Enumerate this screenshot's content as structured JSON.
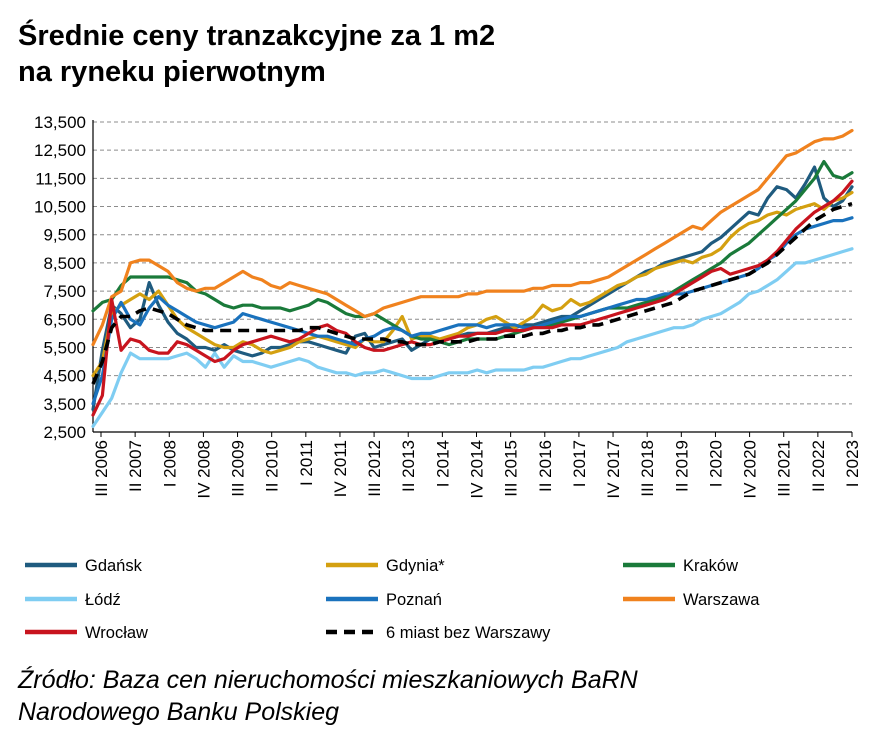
{
  "title": {
    "line1": "Średnie ceny tranzakcyjne za 1 m2",
    "line2": "na ryneku pierwotnym"
  },
  "source": {
    "line1": "Źródło: Baza cen nieruchomości mieszkaniowych BaRN",
    "line2": "Narodowego Banku Polskieg"
  },
  "chart_data": {
    "type": "line",
    "x_start": "III 2006",
    "x_ticks": [
      "III 2006",
      "II 2007",
      "I 2008",
      "IV 2008",
      "III 2009",
      "II 2010",
      "I 2011",
      "IV 2011",
      "III 2012",
      "II 2013",
      "I 2014",
      "IV 2014",
      "III 2015",
      "II 2016",
      "I 2017",
      "IV 2017",
      "III 2018",
      "II 2019",
      "I 2020",
      "IV 2020",
      "III 2021",
      "II 2022",
      "I 2023"
    ],
    "y_ticks": [
      "13,500",
      "12,500",
      "11,500",
      "10,500",
      "9,500",
      "8,500",
      "7,500",
      "6,500",
      "5,500",
      "4,500",
      "3,500",
      "2,500"
    ],
    "ylim": [
      2500,
      13500
    ],
    "grid": true,
    "legend_position": "bottom",
    "series": [
      {
        "name": "Gdańsk",
        "color": "#1f5b7f",
        "dashed": false,
        "values": [
          3300,
          5400,
          7000,
          6700,
          6200,
          6500,
          7800,
          7000,
          6400,
          6000,
          5800,
          5500,
          5500,
          5400,
          5600,
          5400,
          5300,
          5200,
          5300,
          5500,
          5500,
          5600,
          5700,
          5700,
          5600,
          5500,
          5400,
          5300,
          5900,
          6000,
          5500,
          5600,
          5700,
          5800,
          5400,
          5600,
          5800,
          5700,
          5800,
          5900,
          6000,
          6000,
          6000,
          6100,
          6200,
          6200,
          6300,
          6300,
          6400,
          6500,
          6600,
          6600,
          6800,
          7000,
          7200,
          7400,
          7600,
          7800,
          8000,
          8200,
          8300,
          8500,
          8600,
          8700,
          8800,
          8900,
          9200,
          9400,
          9700,
          10000,
          10300,
          10200,
          10800,
          11200,
          11100,
          10800,
          11300,
          11900,
          10800,
          10500,
          10700,
          11200
        ]
      },
      {
        "name": "Gdynia*",
        "color": "#d4a010",
        "dashed": false,
        "values": [
          4500,
          5000,
          6700,
          7000,
          7200,
          7400,
          7200,
          7500,
          7000,
          6500,
          6200,
          6000,
          5800,
          5600,
          5500,
          5500,
          5700,
          5600,
          5400,
          5300,
          5400,
          5500,
          5700,
          5800,
          5900,
          5800,
          5700,
          5600,
          5500,
          5800,
          5700,
          5700,
          6100,
          6600,
          5800,
          5900,
          5900,
          5800,
          5900,
          6000,
          6200,
          6300,
          6500,
          6600,
          6400,
          6200,
          6400,
          6600,
          7000,
          6800,
          6900,
          7200,
          7000,
          7100,
          7300,
          7500,
          7700,
          7800,
          8000,
          8100,
          8300,
          8400,
          8500,
          8600,
          8500,
          8700,
          8800,
          9000,
          9400,
          9700,
          9900,
          10000,
          10200,
          10300,
          10200,
          10400,
          10500,
          10600,
          10400,
          10700,
          10800,
          11000
        ]
      },
      {
        "name": "Kraków",
        "color": "#1a7a3a",
        "dashed": false,
        "values": [
          6800,
          7100,
          7200,
          7700,
          8000,
          8000,
          8000,
          8000,
          8000,
          7900,
          7800,
          7500,
          7400,
          7200,
          7000,
          6900,
          7000,
          7000,
          6900,
          6900,
          6900,
          6800,
          6900,
          7000,
          7200,
          7100,
          6900,
          6700,
          6600,
          6600,
          6700,
          6500,
          6300,
          6100,
          5900,
          5800,
          5800,
          5700,
          5600,
          5700,
          5800,
          5800,
          5800,
          5800,
          5900,
          6000,
          6100,
          6200,
          6300,
          6300,
          6400,
          6500,
          6600,
          6700,
          6800,
          6900,
          6900,
          6900,
          7000,
          7100,
          7200,
          7300,
          7500,
          7700,
          7900,
          8100,
          8300,
          8500,
          8800,
          9000,
          9200,
          9500,
          9800,
          10100,
          10400,
          10700,
          11100,
          11500,
          12100,
          11600,
          11500,
          11700
        ]
      },
      {
        "name": "Łódź",
        "color": "#7fcdf2",
        "dashed": false,
        "values": [
          2700,
          3200,
          3700,
          4600,
          5300,
          5100,
          5100,
          5100,
          5100,
          5200,
          5300,
          5100,
          4800,
          5300,
          4800,
          5200,
          5000,
          5000,
          4900,
          4800,
          4900,
          5000,
          5100,
          5000,
          4800,
          4700,
          4600,
          4600,
          4500,
          4600,
          4600,
          4700,
          4600,
          4500,
          4400,
          4400,
          4400,
          4500,
          4600,
          4600,
          4600,
          4700,
          4600,
          4700,
          4700,
          4700,
          4700,
          4800,
          4800,
          4900,
          5000,
          5100,
          5100,
          5200,
          5300,
          5400,
          5500,
          5700,
          5800,
          5900,
          6000,
          6100,
          6200,
          6200,
          6300,
          6500,
          6600,
          6700,
          6900,
          7100,
          7400,
          7500,
          7700,
          7900,
          8200,
          8500,
          8500,
          8600,
          8700,
          8800,
          8900,
          9000
        ]
      },
      {
        "name": "Poznań",
        "color": "#1a72bd",
        "dashed": false,
        "values": [
          3500,
          4500,
          6500,
          7100,
          6500,
          6300,
          6900,
          7300,
          7000,
          6800,
          6600,
          6400,
          6300,
          6200,
          6300,
          6400,
          6700,
          6600,
          6500,
          6400,
          6300,
          6200,
          6100,
          6000,
          5900,
          5900,
          5800,
          5700,
          5600,
          5800,
          5900,
          6100,
          6200,
          6100,
          5900,
          6000,
          6000,
          6100,
          6200,
          6300,
          6300,
          6300,
          6200,
          6300,
          6300,
          6300,
          6200,
          6200,
          6300,
          6400,
          6500,
          6600,
          6600,
          6700,
          6800,
          6900,
          7000,
          7100,
          7200,
          7200,
          7300,
          7400,
          7400,
          7400,
          7500,
          7600,
          7700,
          7800,
          7900,
          8000,
          8100,
          8300,
          8600,
          8800,
          9200,
          9500,
          9700,
          9800,
          9900,
          10000,
          10000,
          10100
        ]
      },
      {
        "name": "Warszawa",
        "color": "#f0821e",
        "dashed": false,
        "values": [
          5600,
          6300,
          7300,
          7500,
          8500,
          8600,
          8600,
          8400,
          8200,
          7800,
          7600,
          7500,
          7600,
          7600,
          7800,
          8000,
          8200,
          8000,
          7900,
          7700,
          7600,
          7800,
          7700,
          7600,
          7500,
          7400,
          7200,
          7000,
          6800,
          6600,
          6700,
          6900,
          7000,
          7100,
          7200,
          7300,
          7300,
          7300,
          7300,
          7300,
          7400,
          7400,
          7500,
          7500,
          7500,
          7500,
          7500,
          7600,
          7600,
          7700,
          7700,
          7700,
          7800,
          7800,
          7900,
          8000,
          8200,
          8400,
          8600,
          8800,
          9000,
          9200,
          9400,
          9600,
          9800,
          9700,
          10000,
          10300,
          10500,
          10700,
          10900,
          11100,
          11500,
          11900,
          12300,
          12400,
          12600,
          12800,
          12900,
          12900,
          13000,
          13200
        ]
      },
      {
        "name": "Wrocław",
        "color": "#c8141e",
        "dashed": false,
        "values": [
          3100,
          3800,
          7200,
          5400,
          5800,
          5700,
          5400,
          5300,
          5300,
          5700,
          5600,
          5400,
          5200,
          5000,
          5100,
          5400,
          5600,
          5700,
          5800,
          5900,
          5800,
          5700,
          5800,
          6000,
          6200,
          6300,
          6100,
          6000,
          5700,
          5500,
          5400,
          5400,
          5500,
          5600,
          5700,
          5600,
          5600,
          5700,
          5800,
          5900,
          5900,
          6000,
          6000,
          6000,
          6100,
          6100,
          6100,
          6200,
          6200,
          6200,
          6300,
          6300,
          6300,
          6400,
          6500,
          6600,
          6700,
          6800,
          6900,
          7000,
          7100,
          7200,
          7400,
          7600,
          7800,
          8000,
          8200,
          8300,
          8100,
          8200,
          8300,
          8400,
          8600,
          8900,
          9300,
          9700,
          10000,
          10300,
          10500,
          10700,
          11000,
          11400
        ]
      },
      {
        "name": "6 miast bez Warszawy",
        "color": "#000000",
        "dashed": true,
        "values": [
          4200,
          5000,
          6200,
          6600,
          6600,
          6800,
          6900,
          6800,
          6700,
          6500,
          6300,
          6200,
          6100,
          6100,
          6100,
          6100,
          6100,
          6100,
          6100,
          6100,
          6100,
          6100,
          6100,
          6200,
          6200,
          6100,
          6000,
          5900,
          5800,
          5800,
          5800,
          5800,
          5700,
          5700,
          5600,
          5600,
          5600,
          5700,
          5700,
          5700,
          5700,
          5800,
          5800,
          5800,
          5900,
          5900,
          5900,
          6000,
          6000,
          6100,
          6100,
          6200,
          6200,
          6300,
          6300,
          6400,
          6500,
          6600,
          6700,
          6800,
          6900,
          7000,
          7100,
          7300,
          7500,
          7600,
          7700,
          7800,
          7900,
          8000,
          8100,
          8300,
          8500,
          8800,
          9100,
          9400,
          9700,
          10000,
          10200,
          10400,
          10500,
          10600
        ]
      }
    ]
  }
}
